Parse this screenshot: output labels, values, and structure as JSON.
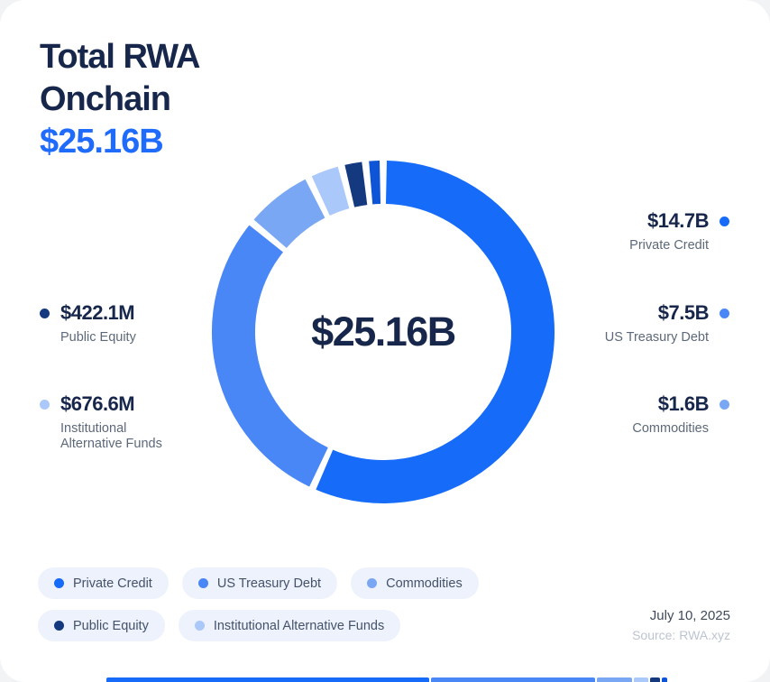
{
  "header": {
    "title_line1": "Total RWA",
    "title_line2": "Onchain",
    "total": "$25.16B"
  },
  "chart_data": {
    "type": "pie",
    "title": "Total RWA Onchain",
    "center_label": "$25.16B",
    "total_label": "$25.16B",
    "unit": "USD",
    "legend_position": "bottom",
    "segments": [
      {
        "name": "Private Credit",
        "display_value": "$14.7B",
        "value_billions": 14.7,
        "color": "#166BF8"
      },
      {
        "name": "US Treasury Debt",
        "display_value": "$7.5B",
        "value_billions": 7.5,
        "color": "#4A87F6"
      },
      {
        "name": "Commodities",
        "display_value": "$1.6B",
        "value_billions": 1.6,
        "color": "#7AA7F4"
      },
      {
        "name": "Institutional Alternative Funds",
        "display_value": "$676.6M",
        "value_billions": 0.6766,
        "color": "#ABC8FA"
      },
      {
        "name": "Public Equity",
        "display_value": "$422.1M",
        "value_billions": 0.4221,
        "color": "#15397F"
      },
      {
        "name": "Unlabeled sliver",
        "display_value": "",
        "value_billions": 0.26,
        "color": "#0E54D6"
      }
    ]
  },
  "callouts": {
    "right": [
      {
        "value": "$14.7B",
        "label": "Private Credit",
        "color": "#166BF8"
      },
      {
        "value": "$7.5B",
        "label": "US Treasury Debt",
        "color": "#4A87F6"
      },
      {
        "value": "$1.6B",
        "label": "Commodities",
        "color": "#7AA7F4"
      }
    ],
    "left": [
      {
        "value": "$422.1M",
        "label": "Public Equity",
        "color": "#15397F"
      },
      {
        "value": "$676.6M",
        "label": "Institutional Alternative Funds",
        "color": "#ABC8FA"
      }
    ]
  },
  "legend": {
    "items": [
      {
        "label": "Private Credit",
        "color": "#166BF8"
      },
      {
        "label": "US Treasury Debt",
        "color": "#4A87F6"
      },
      {
        "label": "Commodities",
        "color": "#7AA7F4"
      },
      {
        "label": "Public Equity",
        "color": "#15397F"
      },
      {
        "label": "Institutional Alternative Funds",
        "color": "#ABC8FA"
      }
    ]
  },
  "footer": {
    "date": "July 10, 2025",
    "source": "Source: RWA.xyz"
  }
}
